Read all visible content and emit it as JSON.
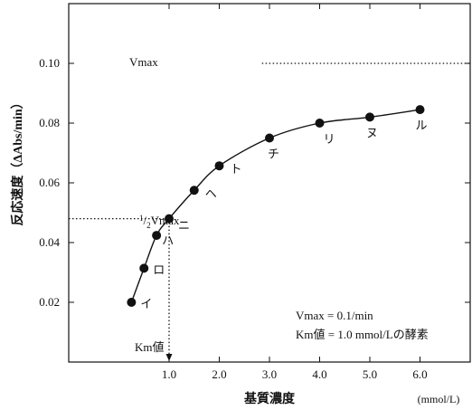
{
  "chart_data": {
    "type": "scatter",
    "x_unit_label": "(mmol/L)",
    "xlabel": "基質濃度",
    "ylabel": "反応速度（ΔAbs/min）",
    "xlim": [
      -1.0,
      7.0
    ],
    "ylim": [
      0.0,
      0.12
    ],
    "x_ticks": [
      1.0,
      2.0,
      3.0,
      4.0,
      5.0,
      6.0
    ],
    "x_tick_labels": [
      "1.0",
      "2.0",
      "3.0",
      "4.0",
      "5.0",
      "6.0"
    ],
    "y_ticks": [
      0.02,
      0.04,
      0.06,
      0.08,
      0.1
    ],
    "y_tick_labels": [
      "0.02",
      "0.04",
      "0.06",
      "0.08",
      "0.10"
    ],
    "grid": false,
    "vmax": 0.1,
    "km": 1.0,
    "points": [
      {
        "x": 0.25,
        "y": 0.02,
        "label": "イ"
      },
      {
        "x": 0.5,
        "y": 0.0314,
        "label": "ロ"
      },
      {
        "x": 0.75,
        "y": 0.0424,
        "label": "ハ"
      },
      {
        "x": 1.0,
        "y": 0.048,
        "label": "ニ"
      },
      {
        "x": 1.5,
        "y": 0.0575,
        "label": "ヘ"
      },
      {
        "x": 2.0,
        "y": 0.0657,
        "label": "ト"
      },
      {
        "x": 3.0,
        "y": 0.075,
        "label": "チ"
      },
      {
        "x": 4.0,
        "y": 0.08,
        "label": "リ"
      },
      {
        "x": 5.0,
        "y": 0.082,
        "label": "ヌ"
      },
      {
        "x": 6.0,
        "y": 0.0845,
        "label": "ル"
      }
    ],
    "annotations": {
      "vmax_label": "Vmax",
      "half_vmax_sup": "1",
      "half_vmax_sub": "2",
      "half_vmax_text": "Vmax",
      "km_label": "Km値",
      "note_line1": "Vmax = 0.1/min",
      "note_line2": "Km値 = 1.0 mmol/Lの酵素"
    }
  }
}
